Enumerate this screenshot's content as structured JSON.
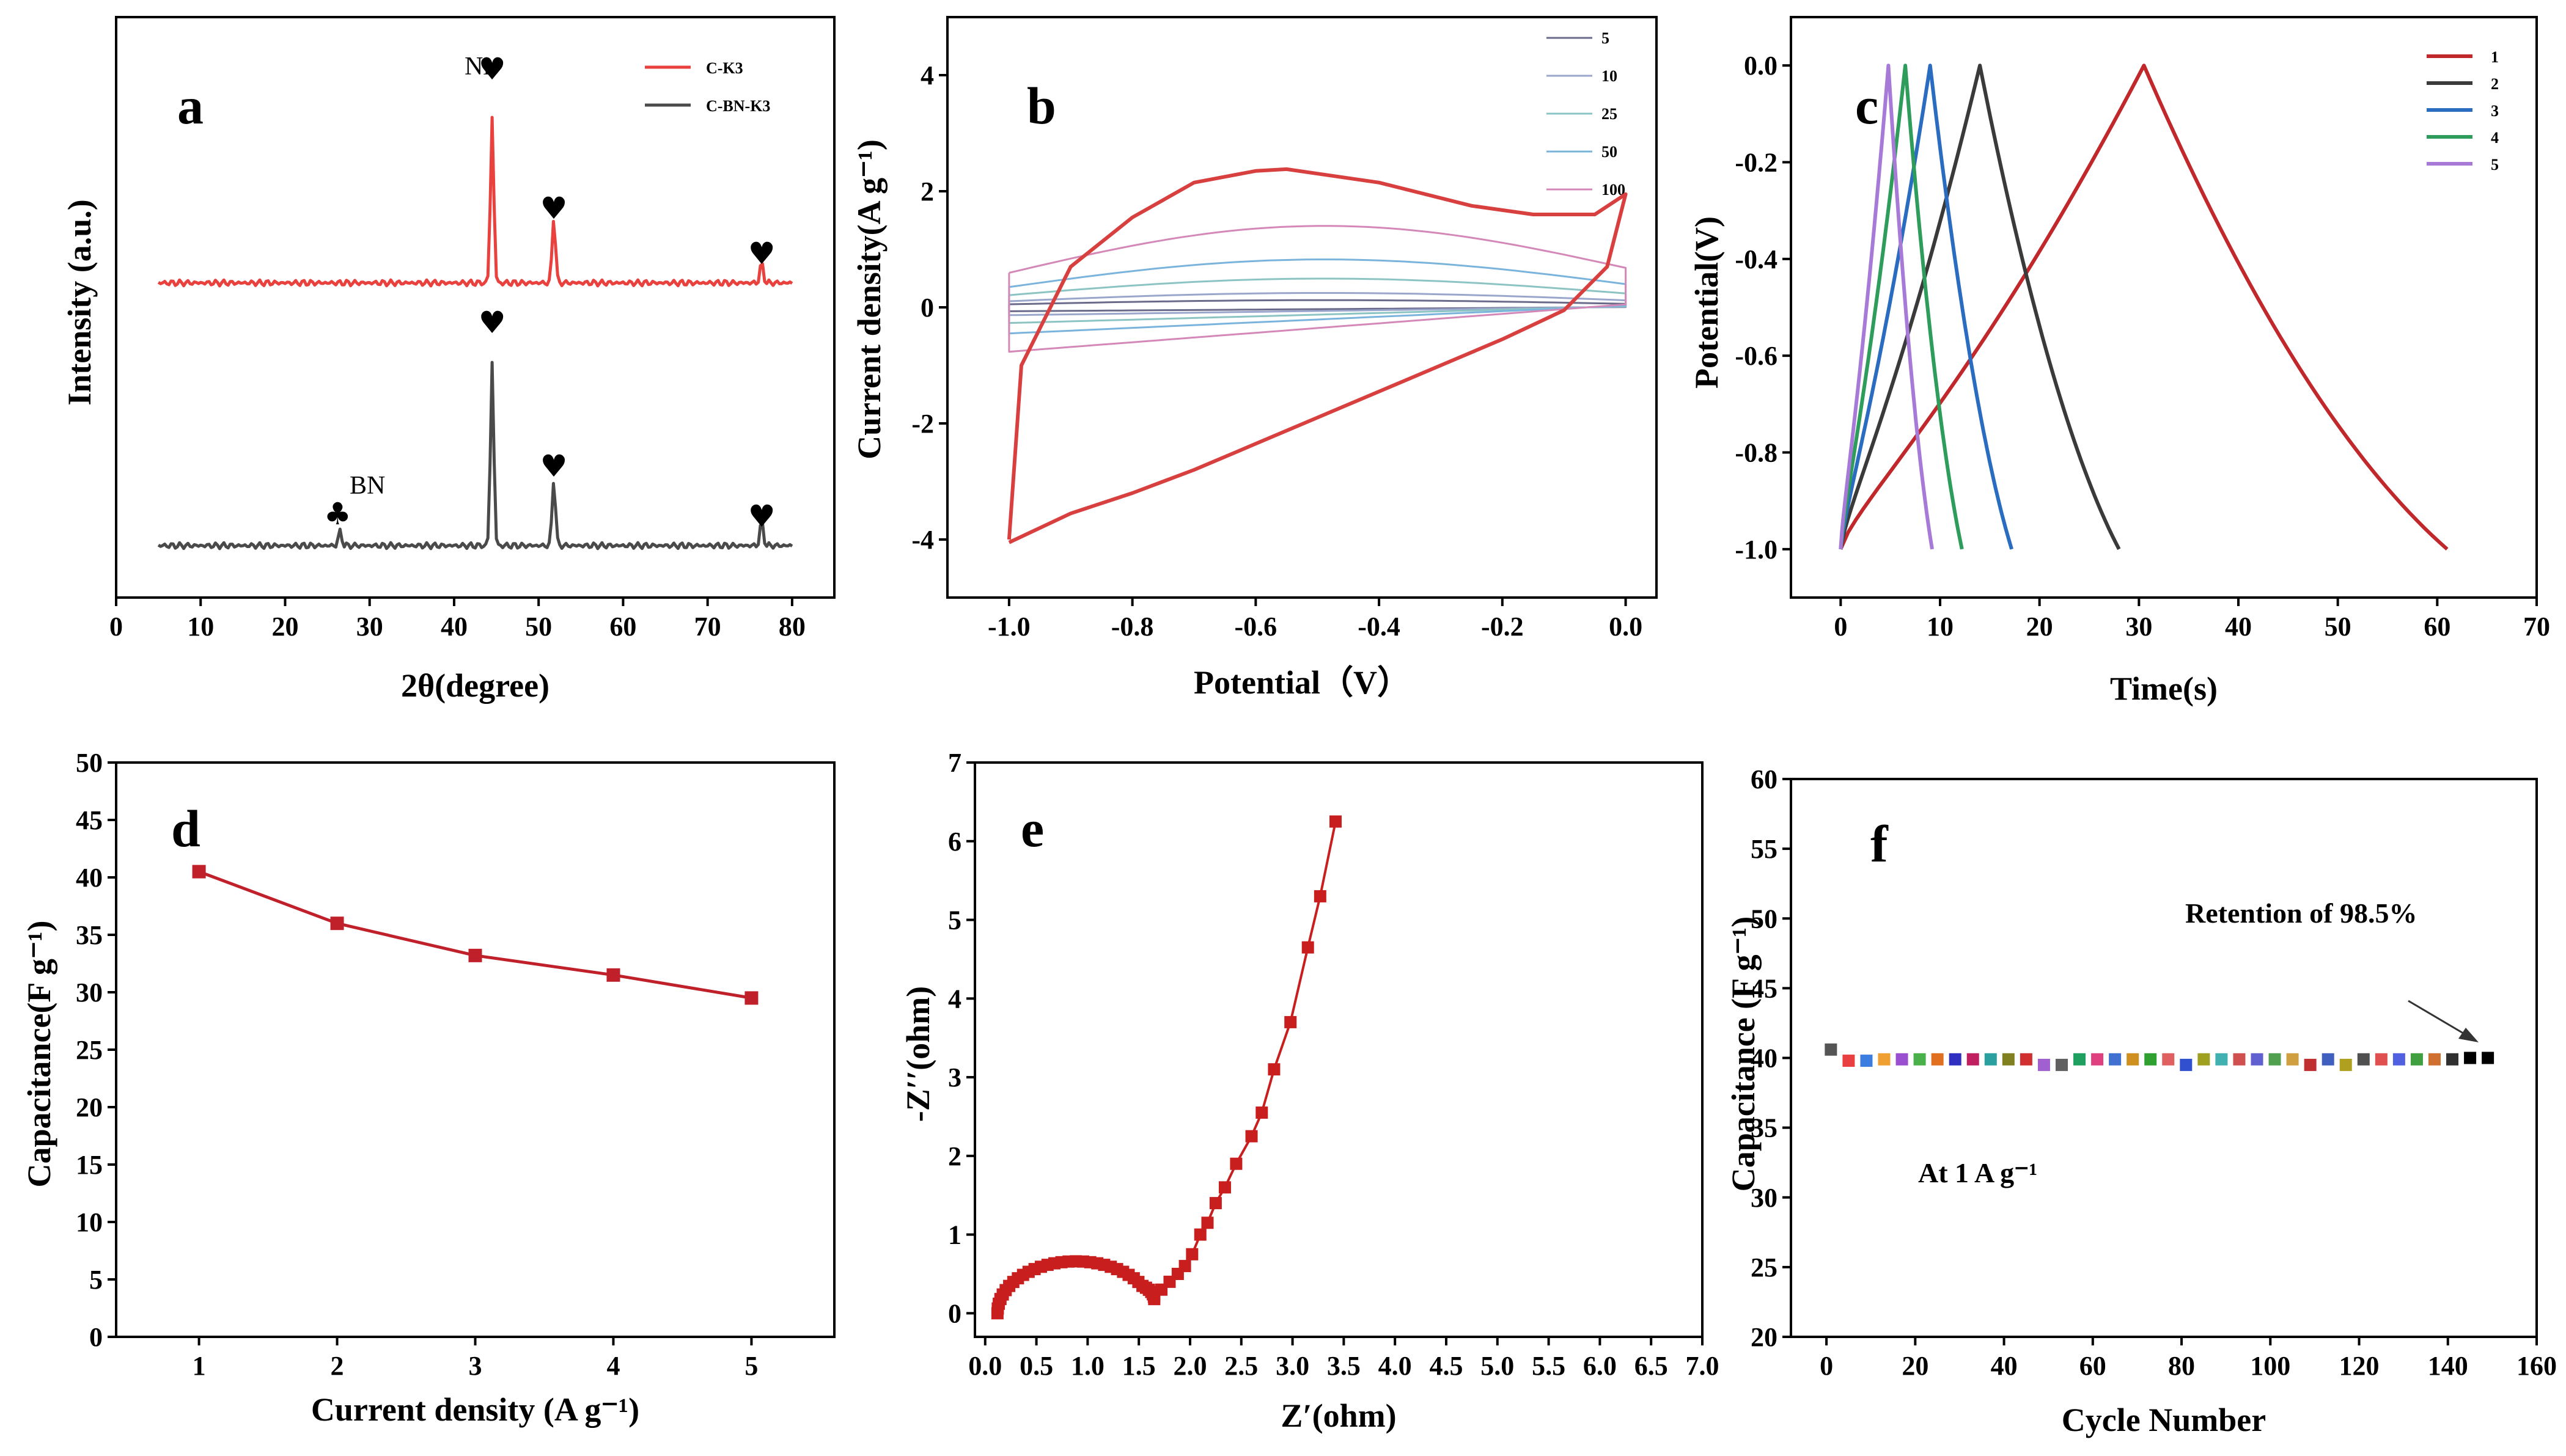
{
  "chart_data": [
    {
      "panel": "a",
      "type": "line",
      "xlabel": "2θ(degree)",
      "ylabel": "Intensity (a.u.)",
      "xlim": [
        0,
        85
      ],
      "xticks": [
        0,
        10,
        20,
        30,
        40,
        50,
        60,
        70,
        80
      ],
      "series": [
        {
          "name": "C-K3",
          "color": "#e8413e",
          "peaks": [
            [
              44.5,
              100
            ],
            [
              51.8,
              40
            ],
            [
              76.4,
              12
            ]
          ]
        },
        {
          "name": "C-BN-K3",
          "color": "#4a4a4a",
          "peaks": [
            [
              26.5,
              9
            ],
            [
              44.5,
              115
            ],
            [
              51.8,
              42
            ],
            [
              76.4,
              15
            ]
          ]
        }
      ],
      "annotations": {
        "ni": "Ni",
        "bn": "BN",
        "heart": "♥",
        "club": "♣"
      }
    },
    {
      "panel": "b",
      "type": "line",
      "xlabel": "Potential（V）",
      "ylabel": "Current density(A g⁻¹)",
      "xlim": [
        -1.1,
        0.05
      ],
      "ylim": [
        -5,
        5
      ],
      "xticks": [
        "-1.0",
        "-0.8",
        "-0.6",
        "-0.4",
        "-0.2",
        "0.0"
      ],
      "yticks": [
        -4,
        -2,
        0,
        2,
        4
      ],
      "series": [
        {
          "name": "5",
          "color": "#6a6a8a",
          "amp": 0.15
        },
        {
          "name": "10",
          "color": "#9aa6cc",
          "amp": 0.3
        },
        {
          "name": "25",
          "color": "#8cc4c4",
          "amp": 0.6
        },
        {
          "name": "50",
          "color": "#7ab4dc",
          "amp": 1.0
        },
        {
          "name": "100",
          "color": "#d488b8",
          "amp": 1.7
        }
      ],
      "curve": {
        "name": "main",
        "color": "#d84040",
        "upper": [
          [
            -1.0,
            -4.0
          ],
          [
            -0.98,
            -1.0
          ],
          [
            -0.9,
            0.7
          ],
          [
            -0.8,
            1.55
          ],
          [
            -0.7,
            2.15
          ],
          [
            -0.6,
            2.35
          ],
          [
            -0.55,
            2.38
          ],
          [
            -0.4,
            2.15
          ],
          [
            -0.25,
            1.75
          ],
          [
            -0.15,
            1.6
          ],
          [
            -0.05,
            1.6
          ],
          [
            0.0,
            1.95
          ]
        ],
        "lower": [
          [
            -1.0,
            -4.05
          ],
          [
            -0.9,
            -3.55
          ],
          [
            -0.8,
            -3.2
          ],
          [
            -0.7,
            -2.8
          ],
          [
            -0.6,
            -2.35
          ],
          [
            -0.5,
            -1.9
          ],
          [
            -0.4,
            -1.45
          ],
          [
            -0.3,
            -1.0
          ],
          [
            -0.2,
            -0.55
          ],
          [
            -0.1,
            -0.05
          ],
          [
            -0.03,
            0.7
          ],
          [
            0.0,
            1.95
          ]
        ]
      }
    },
    {
      "panel": "c",
      "type": "line",
      "xlabel": "Time(s)",
      "ylabel": "Potential(V)",
      "xlim": [
        -5,
        70
      ],
      "ylim": [
        -1.1,
        0.1
      ],
      "xticks": [
        0,
        10,
        20,
        30,
        40,
        50,
        60,
        70
      ],
      "yticks": [
        "0.0",
        "-0.2",
        "-0.4",
        "-0.6",
        "-0.8",
        "-1.0"
      ],
      "series": [
        {
          "name": "1",
          "color": "#c0282c",
          "t_peak": 30.5,
          "t_end": 61
        },
        {
          "name": "2",
          "color": "#3a3a3a",
          "t_peak": 14,
          "t_end": 28
        },
        {
          "name": "3",
          "color": "#2a6cc0",
          "t_peak": 9,
          "t_end": 17.2
        },
        {
          "name": "4",
          "color": "#2e9c5a",
          "t_peak": 6.5,
          "t_end": 12.2
        },
        {
          "name": "5",
          "color": "#a87ad8",
          "t_peak": 4.8,
          "t_end": 9.2
        }
      ]
    },
    {
      "panel": "d",
      "type": "line",
      "xlabel": "Current density (A g⁻¹)",
      "ylabel": "Capacitance(F g⁻¹)",
      "xlim": [
        0.4,
        5.6
      ],
      "ylim": [
        0,
        50
      ],
      "xticks": [
        1,
        2,
        3,
        4,
        5
      ],
      "yticks": [
        0,
        5,
        10,
        15,
        20,
        25,
        30,
        35,
        40,
        45,
        50
      ],
      "x": [
        1,
        2,
        3,
        4,
        5
      ],
      "values": [
        40.5,
        36,
        33.2,
        31.5,
        29.5
      ],
      "color": "#c0202a"
    },
    {
      "panel": "e",
      "type": "scatter",
      "xlabel": "Z′(ohm)",
      "ylabel": "-Z′′(ohm)",
      "xlim": [
        -0.1,
        7.0
      ],
      "ylim": [
        -0.3,
        7
      ],
      "xticks": [
        "0.0",
        "0.5",
        "1.0",
        "1.5",
        "2.0",
        "2.5",
        "3.0",
        "3.5",
        "4.0",
        "4.5",
        "5.0",
        "5.5",
        "6.0",
        "6.5",
        "7.0"
      ],
      "yticks": [
        0,
        1,
        2,
        3,
        4,
        5,
        6,
        7
      ],
      "color": "#c81e1e",
      "semicircle": {
        "x_start": 0.12,
        "x_end": 1.65,
        "peak": 0.66
      },
      "tail": [
        [
          1.65,
          0.22
        ],
        [
          1.72,
          0.3
        ],
        [
          1.8,
          0.4
        ],
        [
          1.88,
          0.5
        ],
        [
          1.95,
          0.6
        ],
        [
          2.02,
          0.75
        ],
        [
          2.1,
          1.0
        ],
        [
          2.17,
          1.15
        ],
        [
          2.25,
          1.4
        ],
        [
          2.34,
          1.6
        ],
        [
          2.45,
          1.9
        ],
        [
          2.6,
          2.25
        ],
        [
          2.7,
          2.55
        ],
        [
          2.82,
          3.1
        ],
        [
          2.98,
          3.7
        ],
        [
          3.15,
          4.65
        ],
        [
          3.27,
          5.3
        ],
        [
          3.42,
          6.25
        ]
      ]
    },
    {
      "panel": "f",
      "type": "scatter",
      "xlabel": "Cycle Number",
      "ylabel": "Capacitance (F g⁻¹)",
      "xlim": [
        -8,
        160
      ],
      "ylim": [
        20,
        60
      ],
      "xticks": [
        0,
        20,
        40,
        60,
        80,
        100,
        120,
        140,
        160
      ],
      "yticks": [
        20,
        25,
        30,
        35,
        40,
        45,
        50,
        55,
        60
      ],
      "x": [
        1,
        5,
        9,
        13,
        17,
        21,
        25,
        29,
        33,
        37,
        41,
        45,
        49,
        53,
        57,
        61,
        65,
        69,
        73,
        77,
        81,
        85,
        89,
        93,
        97,
        101,
        105,
        109,
        113,
        117,
        121,
        125,
        129,
        133,
        137,
        141,
        145,
        149
      ],
      "values": [
        40.6,
        39.8,
        39.8,
        39.9,
        39.9,
        39.9,
        39.9,
        39.9,
        39.9,
        39.9,
        39.9,
        39.9,
        39.5,
        39.5,
        39.9,
        39.9,
        39.9,
        39.9,
        39.9,
        39.9,
        39.5,
        39.9,
        39.9,
        39.9,
        39.9,
        39.9,
        39.9,
        39.5,
        39.9,
        39.5,
        39.9,
        39.9,
        39.9,
        39.9,
        39.9,
        39.9,
        40.0,
        40.0
      ],
      "colors": [
        "#555555",
        "#e84040",
        "#3c7ee0",
        "#f0a030",
        "#9a4fd0",
        "#4ab04a",
        "#e07020",
        "#3030c0",
        "#c02060",
        "#2aa0a0",
        "#808020",
        "#d03030",
        "#a060d0",
        "#606060",
        "#20a060",
        "#e04080",
        "#4070d0",
        "#d09020",
        "#30a030",
        "#e06060",
        "#3050d0",
        "#a0a020",
        "#40b0b0",
        "#d05050",
        "#6060d0",
        "#50a050",
        "#d0a040",
        "#c03030",
        "#4060c0",
        "#b0a020",
        "#505050",
        "#e05050",
        "#5060e0",
        "#40a040",
        "#d07030",
        "#303030",
        "#000000",
        "#000000"
      ],
      "annotations": {
        "retention": "Retention of 98.5%",
        "condition": "At 1 A g⁻¹"
      }
    }
  ]
}
